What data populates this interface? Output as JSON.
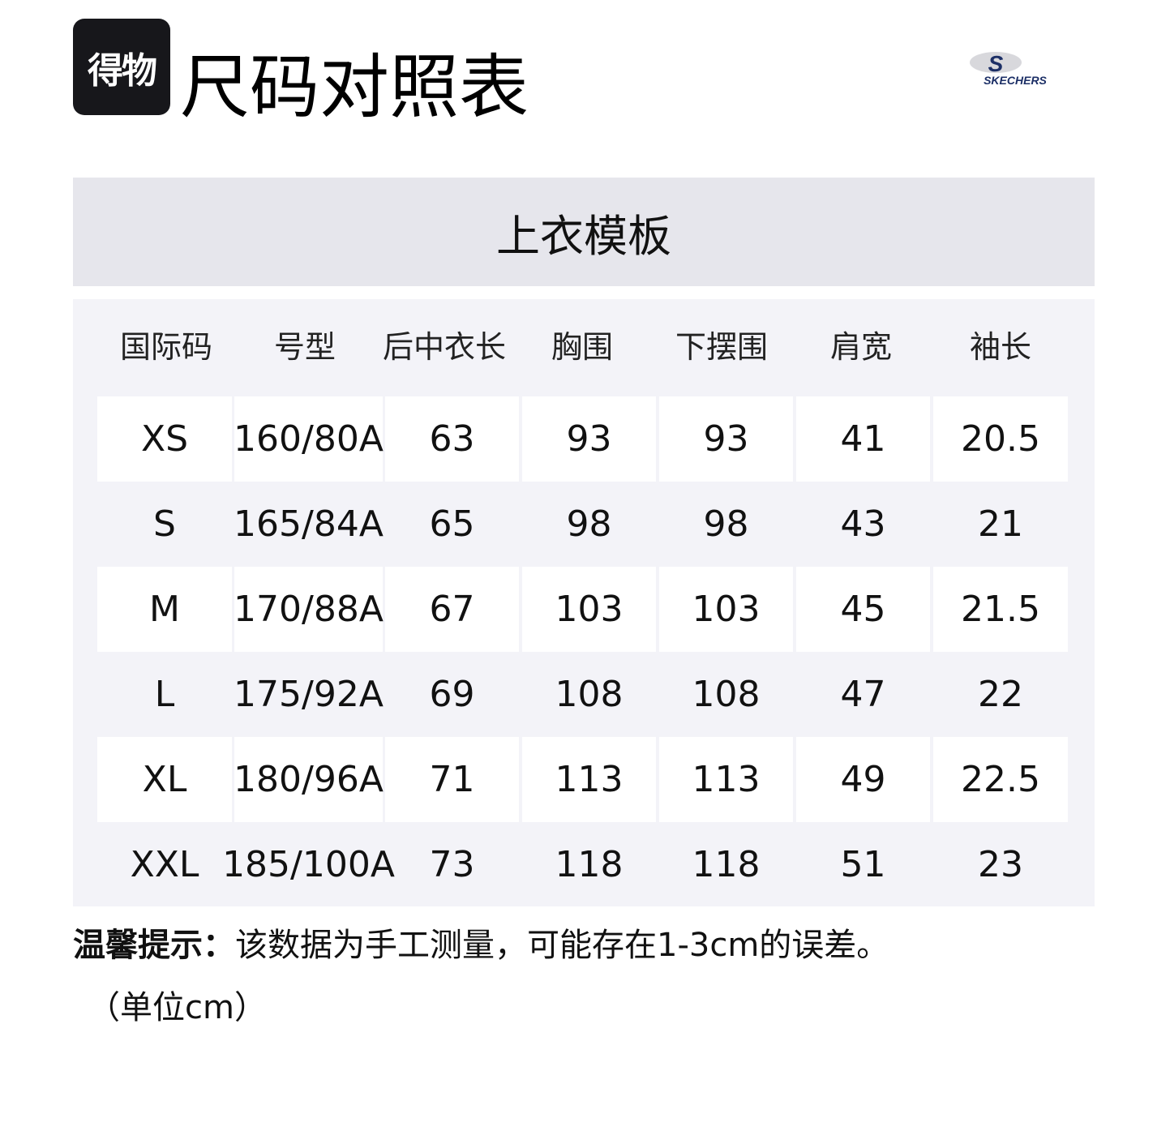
{
  "logo": {
    "text": "得物"
  },
  "title": "尺码对照表",
  "brand": {
    "text": "SKECHERS",
    "color": "#1c2f66"
  },
  "table": {
    "template_title": "上衣模板",
    "headers": [
      "国际码",
      "号型",
      "后中衣长",
      "胸围",
      "下摆围",
      "肩宽",
      "袖长"
    ],
    "rows": [
      [
        "XS",
        "160/80A",
        "63",
        "93",
        "93",
        "41",
        "20.5"
      ],
      [
        "S",
        "165/84A",
        "65",
        "98",
        "98",
        "43",
        "21"
      ],
      [
        "M",
        "170/88A",
        "67",
        "103",
        "103",
        "45",
        "21.5"
      ],
      [
        "L",
        "175/92A",
        "69",
        "108",
        "108",
        "47",
        "22"
      ],
      [
        "XL",
        "180/96A",
        "71",
        "113",
        "113",
        "49",
        "22.5"
      ],
      [
        "XXL",
        "185/100A",
        "73",
        "118",
        "118",
        "51",
        "23"
      ]
    ]
  },
  "note": {
    "label": "温馨提示：",
    "text": "该数据为手工测量，可能存在1-3cm的误差。",
    "unit": "（单位cm）"
  }
}
